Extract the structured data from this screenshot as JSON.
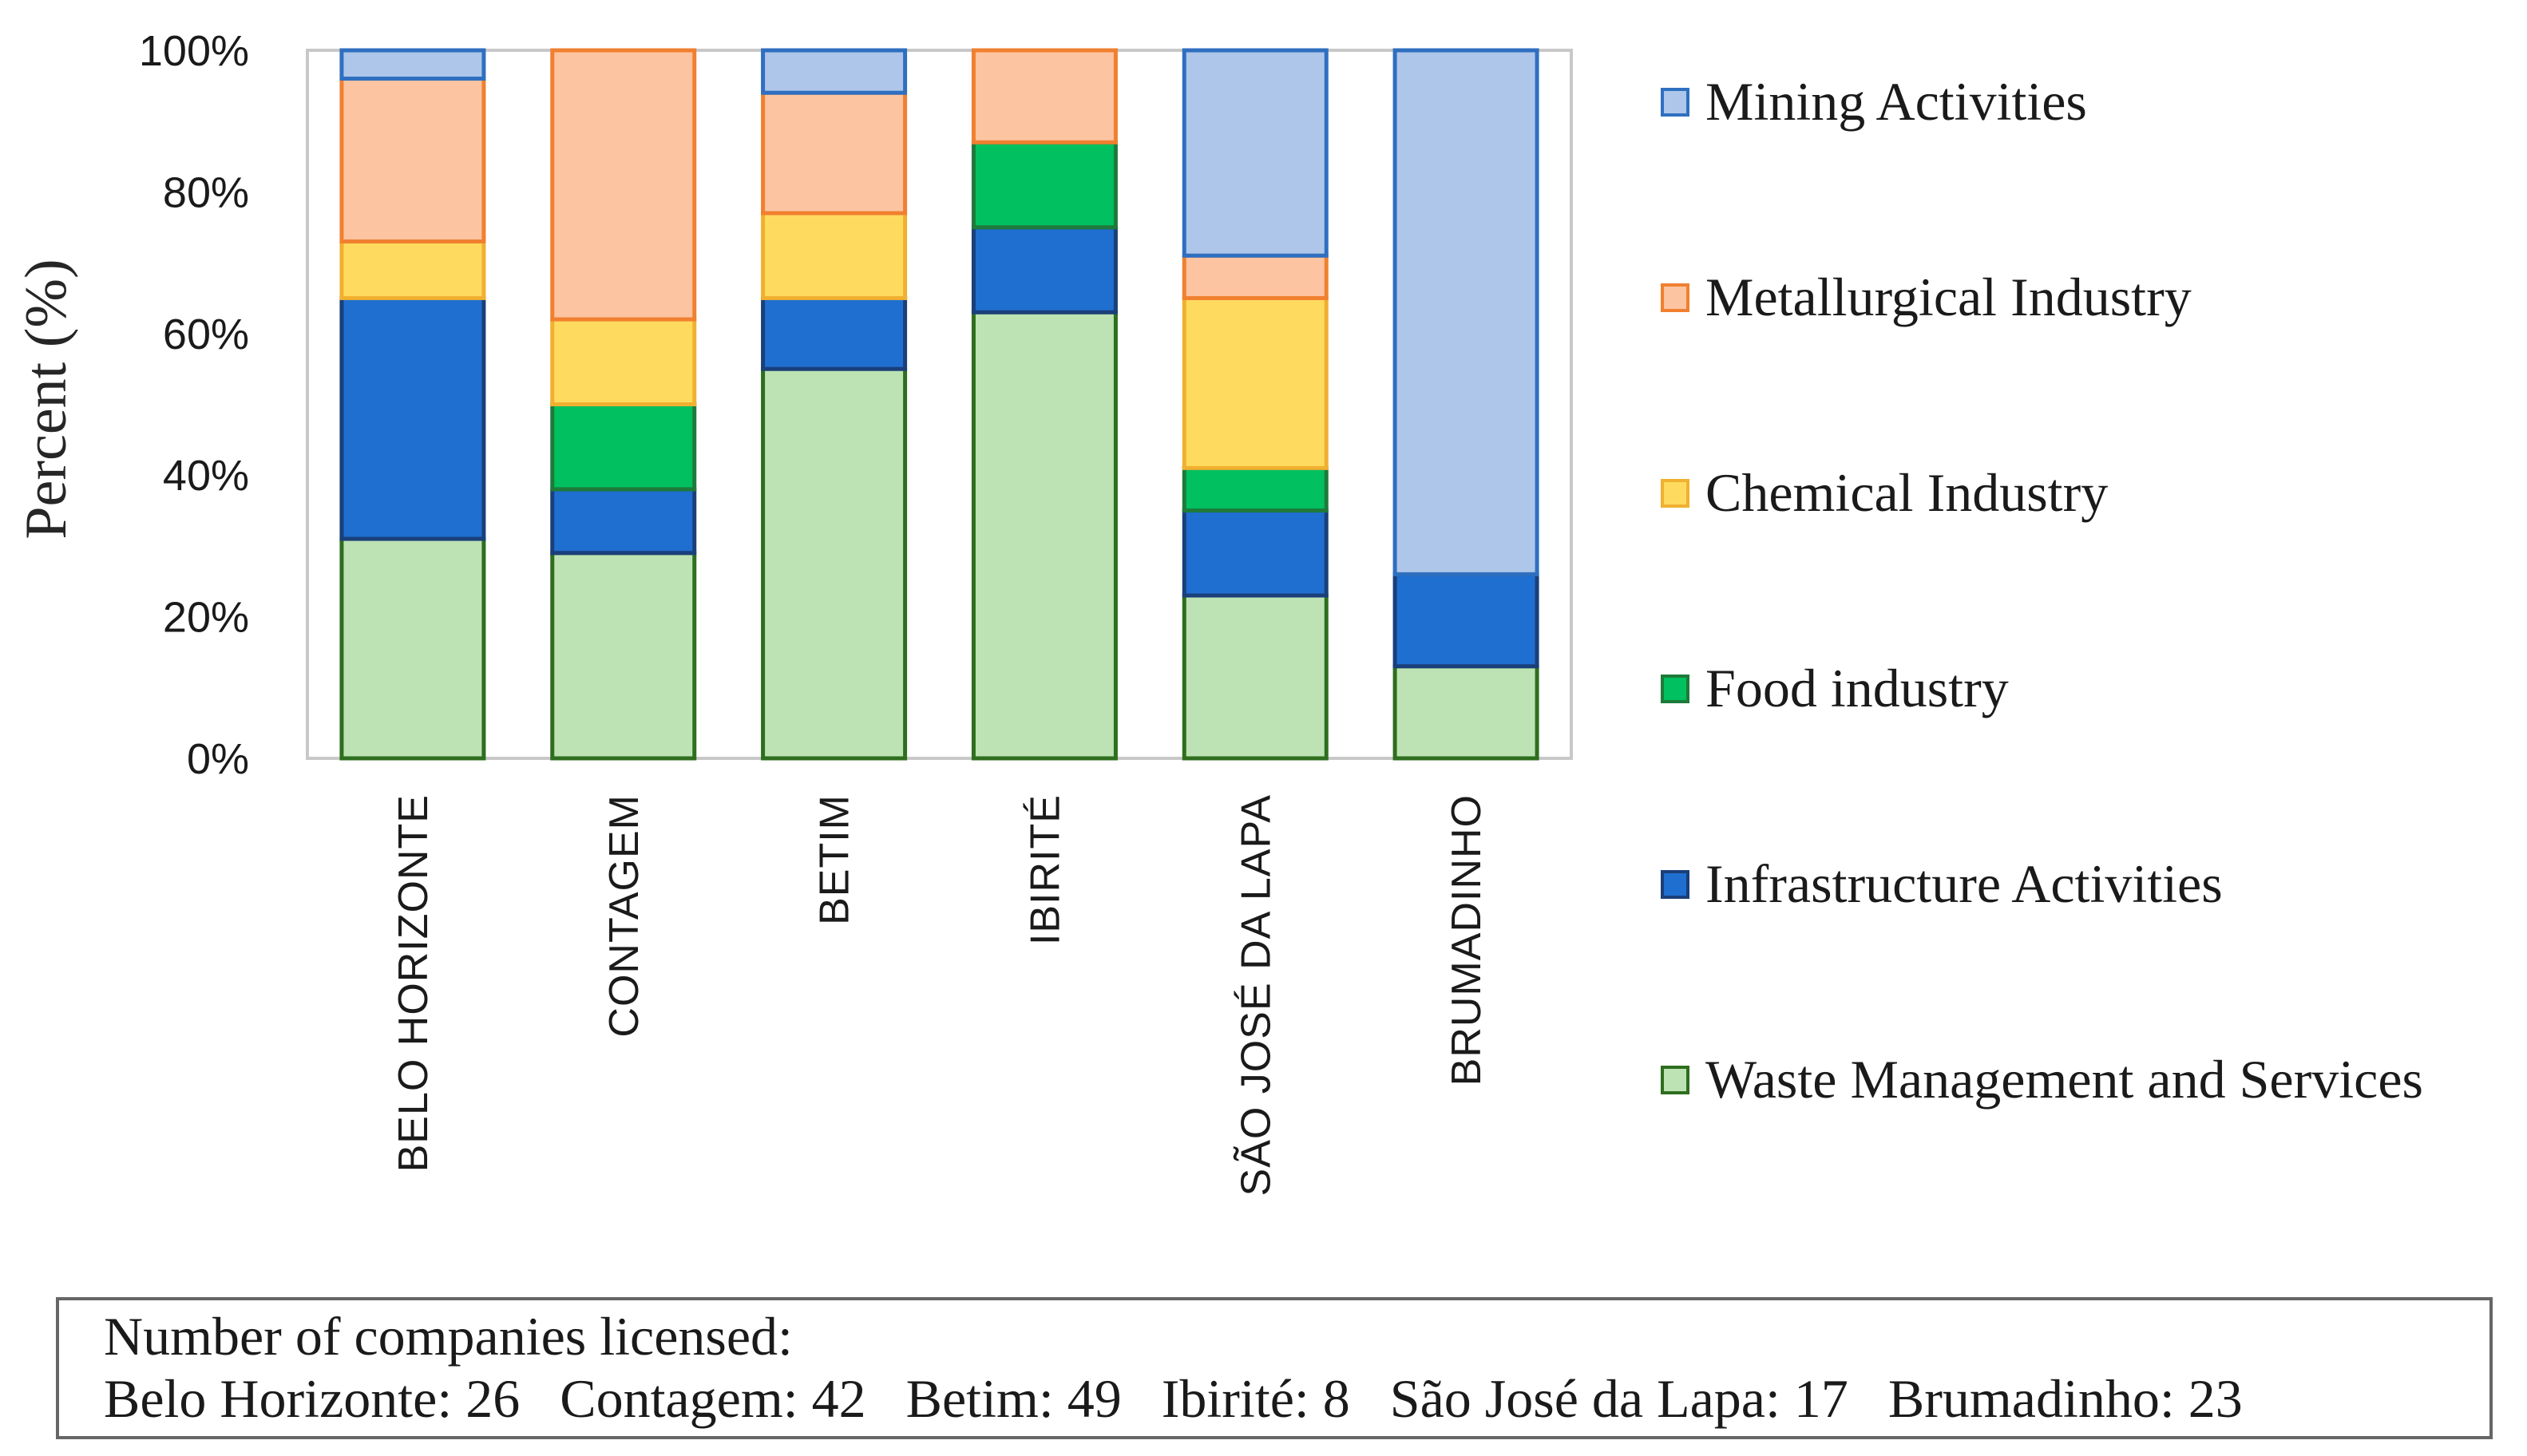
{
  "chart_data": {
    "type": "bar",
    "stacked": true,
    "normalized": true,
    "title": "",
    "xlabel": "",
    "ylabel": "Percent (%)",
    "ylim": [
      0,
      100
    ],
    "yticks": [
      "0%",
      "20%",
      "40%",
      "60%",
      "80%",
      "100%"
    ],
    "grid": false,
    "legend_position": "right",
    "categories": [
      "BELO HORIZONTE",
      "CONTAGEM",
      "BETIM",
      "IBIRITÉ",
      "SÃO JOSÉ DA LAPA",
      "BRUMADINHO"
    ],
    "series": [
      {
        "name": "Waste Management and Services",
        "values": [
          31,
          29,
          55,
          63,
          23,
          13
        ],
        "fill": "#bde3b5",
        "stroke": "#2e6e1e"
      },
      {
        "name": "Infrastructure Activities",
        "values": [
          34,
          9,
          10,
          12,
          12,
          13
        ],
        "fill": "#1f6fd0",
        "stroke": "#1a3f7a"
      },
      {
        "name": "Food industry",
        "values": [
          0,
          12,
          0,
          12,
          6,
          0
        ],
        "fill": "#00c060",
        "stroke": "#1e7a3a"
      },
      {
        "name": "Chemical Industry",
        "values": [
          8,
          12,
          12,
          0,
          24,
          0
        ],
        "fill": "#fedb5e",
        "stroke": "#f0b030"
      },
      {
        "name": "Metallurgical Industry",
        "values": [
          23,
          38,
          17,
          13,
          6,
          0
        ],
        "fill": "#fdc4a1",
        "stroke": "#f08030"
      },
      {
        "name": "Mining Activities",
        "values": [
          4,
          0,
          6,
          0,
          29,
          74
        ],
        "fill": "#aec6e9",
        "stroke": "#2f6fc0"
      }
    ],
    "legend_order": [
      "Mining Activities",
      "Metallurgical Industry",
      "Chemical Industry",
      "Food industry",
      "Infrastructure Activities",
      "Waste Management and Services"
    ]
  },
  "note": {
    "heading": "Number of companies licensed:",
    "counts": [
      "Belo Horizonte: 26",
      "Contagem:  42",
      "Betim: 49",
      "Ibirité: 8",
      "São José da Lapa: 17",
      "Brumadinho:  23"
    ]
  }
}
